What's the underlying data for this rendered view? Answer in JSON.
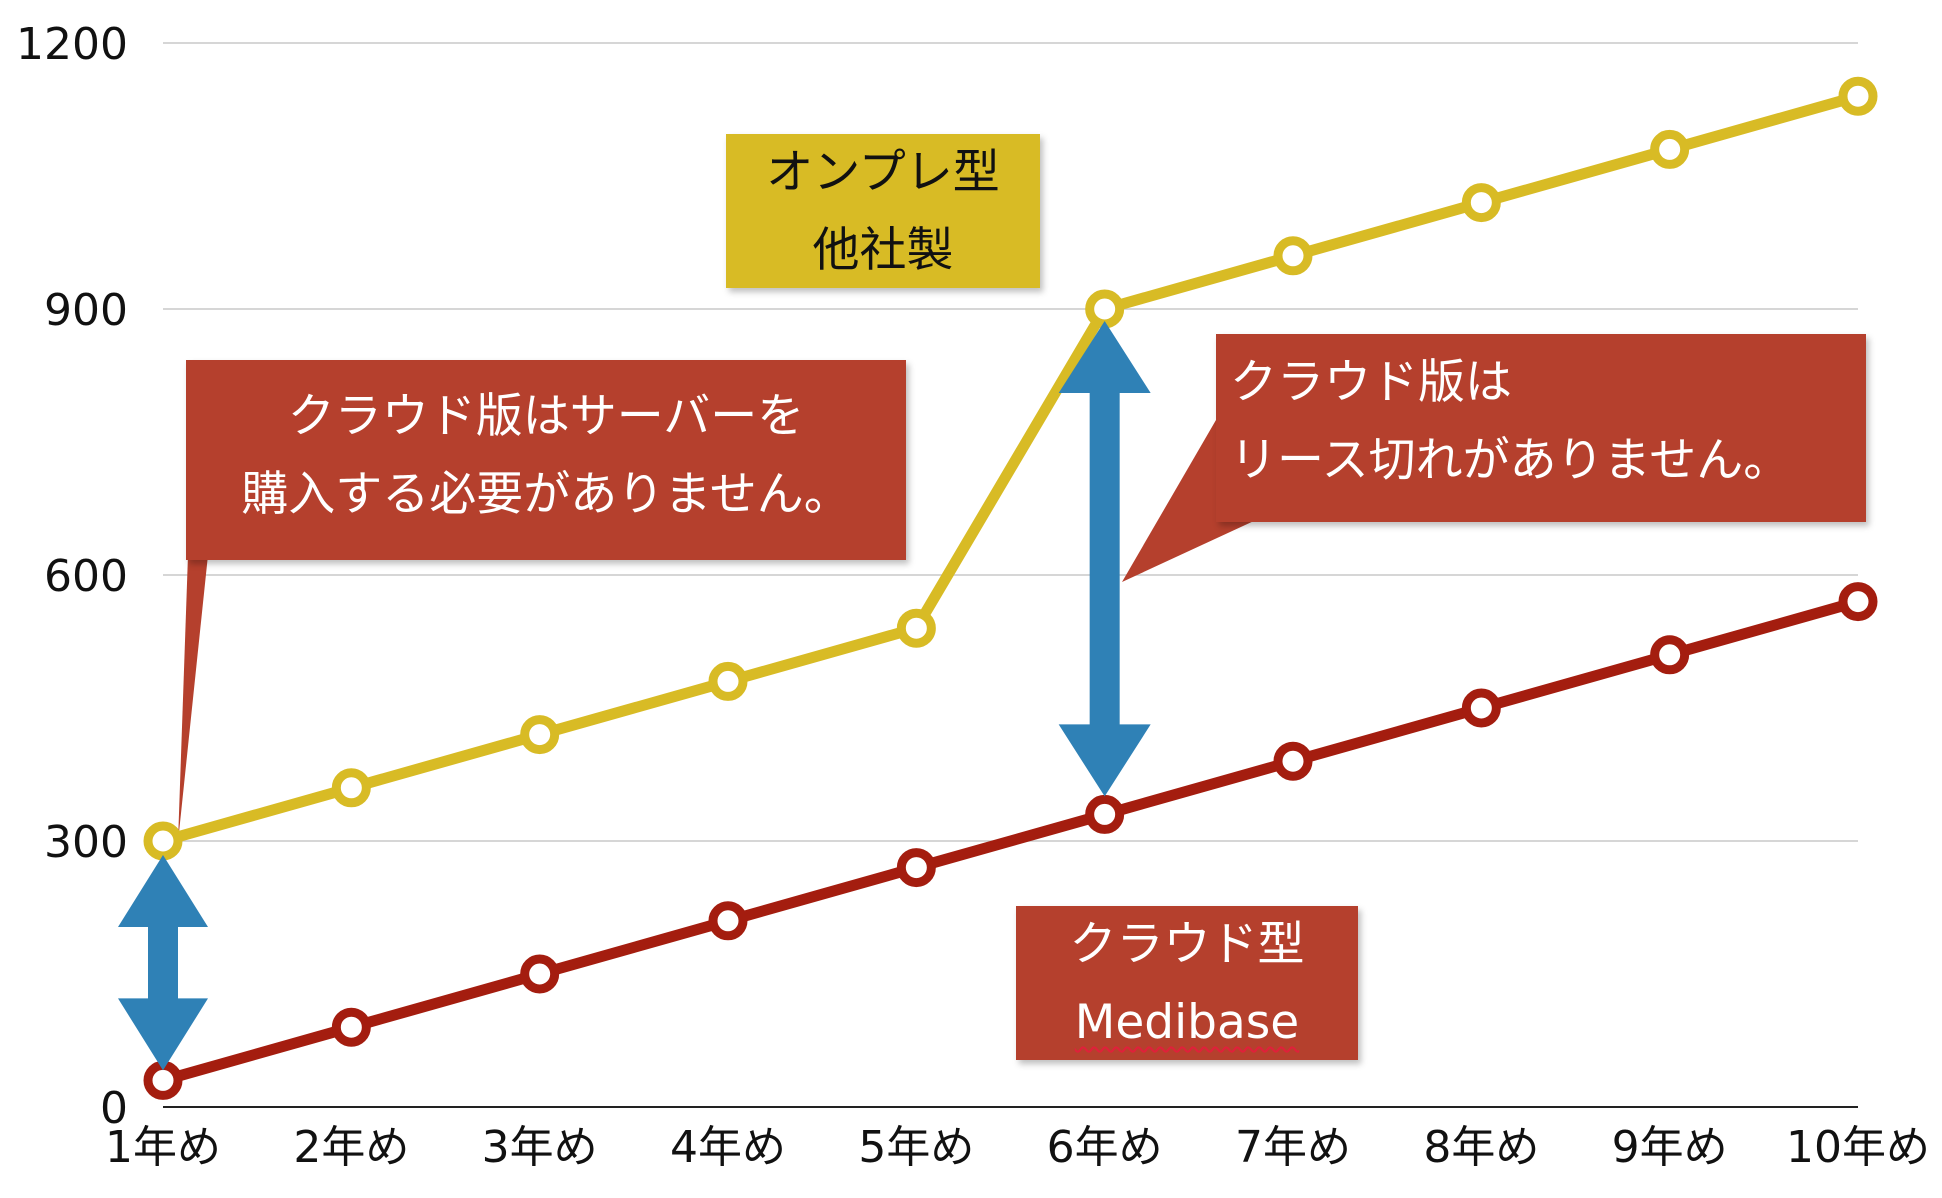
{
  "colors": {
    "onpre": "#d8bb25",
    "cloud": "#a41d0f",
    "callout": "#b5402d",
    "arrow": "#2f81b6",
    "grid": "#c8c8c8",
    "axis": "#222222"
  },
  "chart_data": {
    "type": "line",
    "categories": [
      "1年め",
      "2年め",
      "3年め",
      "4年め",
      "5年め",
      "6年め",
      "7年め",
      "8年め",
      "9年め",
      "10年め"
    ],
    "yticks": [
      "0",
      "300",
      "600",
      "900",
      "1200"
    ],
    "ylim": [
      0,
      1200
    ],
    "grid": true,
    "series": [
      {
        "name": "オンプレ型 他社製",
        "values": [
          300,
          360,
          420,
          480,
          540,
          900,
          960,
          1020,
          1080,
          1140
        ]
      },
      {
        "name": "クラウド型 Medibase",
        "values": [
          30,
          90,
          150,
          210,
          270,
          330,
          390,
          450,
          510,
          570
        ]
      }
    ]
  },
  "labels": {
    "onpre": {
      "line1": "オンプレ型",
      "line2": "他社製"
    },
    "cloud": {
      "line1": "クラウド型",
      "line2": "Medibase"
    }
  },
  "callouts": {
    "left": {
      "line1": "クラウド版はサーバーを",
      "line2": "購入する必要がありません。"
    },
    "right": {
      "line1": "クラウド版は",
      "line2": "リース切れがありません。"
    }
  }
}
